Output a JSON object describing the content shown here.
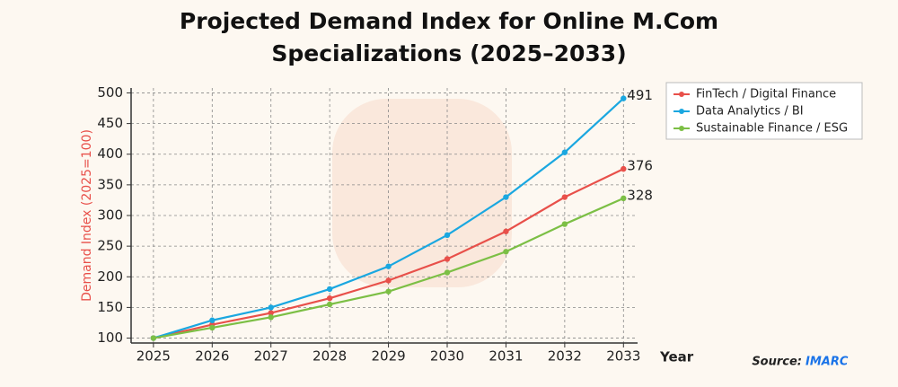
{
  "chart_data": {
    "type": "line",
    "title": "Projected Demand Index for Online M.Com Specializations (2025–2033)",
    "xlabel": "Year",
    "ylabel": "Demand Index (2025=100)",
    "source_label": "Source:",
    "source_name": "IMARC",
    "x": [
      2025,
      2026,
      2027,
      2028,
      2029,
      2030,
      2031,
      2032,
      2033
    ],
    "xlim": [
      2024.62,
      2033.24
    ],
    "xticks": [
      2025,
      2026,
      2027,
      2028,
      2029,
      2030,
      2031,
      2032,
      2033
    ],
    "ylim": [
      92,
      508
    ],
    "yticks": [
      100,
      150,
      200,
      250,
      300,
      350,
      400,
      450,
      500
    ],
    "grid": true,
    "legend": "upper right",
    "series": [
      {
        "name": "FinTech / Digital Finance",
        "color": "#e8504a",
        "values": [
          100,
          122,
          141,
          165,
          194,
          229,
          274,
          330,
          376
        ]
      },
      {
        "name": "Data Analytics / BI",
        "color": "#1aa7e0",
        "values": [
          100,
          129,
          150,
          180,
          217,
          268,
          330,
          403,
          491
        ]
      },
      {
        "name": "Sustainable Finance / ESG",
        "color": "#7cbf45",
        "values": [
          100,
          117,
          134,
          155,
          176,
          207,
          241,
          286,
          328
        ]
      }
    ]
  }
}
